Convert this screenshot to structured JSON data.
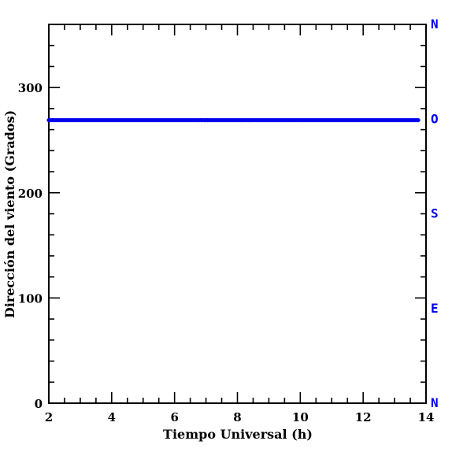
{
  "colors": {
    "series": "#0000ee",
    "compass": "#0000ee",
    "axis": "#000000",
    "background": "#ffffff"
  },
  "chart_data": {
    "type": "scatter",
    "title": "",
    "xlabel": "Tiempo Universal (h)",
    "ylabel": "Dirección del viento (Grados)",
    "xlim": [
      2,
      14
    ],
    "ylim": [
      0,
      360
    ],
    "x_ticks": [
      2,
      4,
      6,
      8,
      10,
      12,
      14
    ],
    "x_tick_labels": [
      "2",
      "4",
      "6",
      "8",
      "10",
      "12",
      "14"
    ],
    "y_ticks": [
      0,
      100,
      200,
      300
    ],
    "y_tick_labels": [
      "0",
      "100",
      "200",
      "300"
    ],
    "right_axis_labels": [
      {
        "value": 0,
        "label": "N"
      },
      {
        "value": 90,
        "label": "E"
      },
      {
        "value": 180,
        "label": "S"
      },
      {
        "value": 270,
        "label": "O"
      },
      {
        "value": 360,
        "label": "N"
      }
    ],
    "grid": false,
    "legend": "none",
    "series": [
      {
        "x_start": 2.0,
        "x_end": 13.75,
        "x_step": 0.05,
        "y": 269
      }
    ]
  }
}
